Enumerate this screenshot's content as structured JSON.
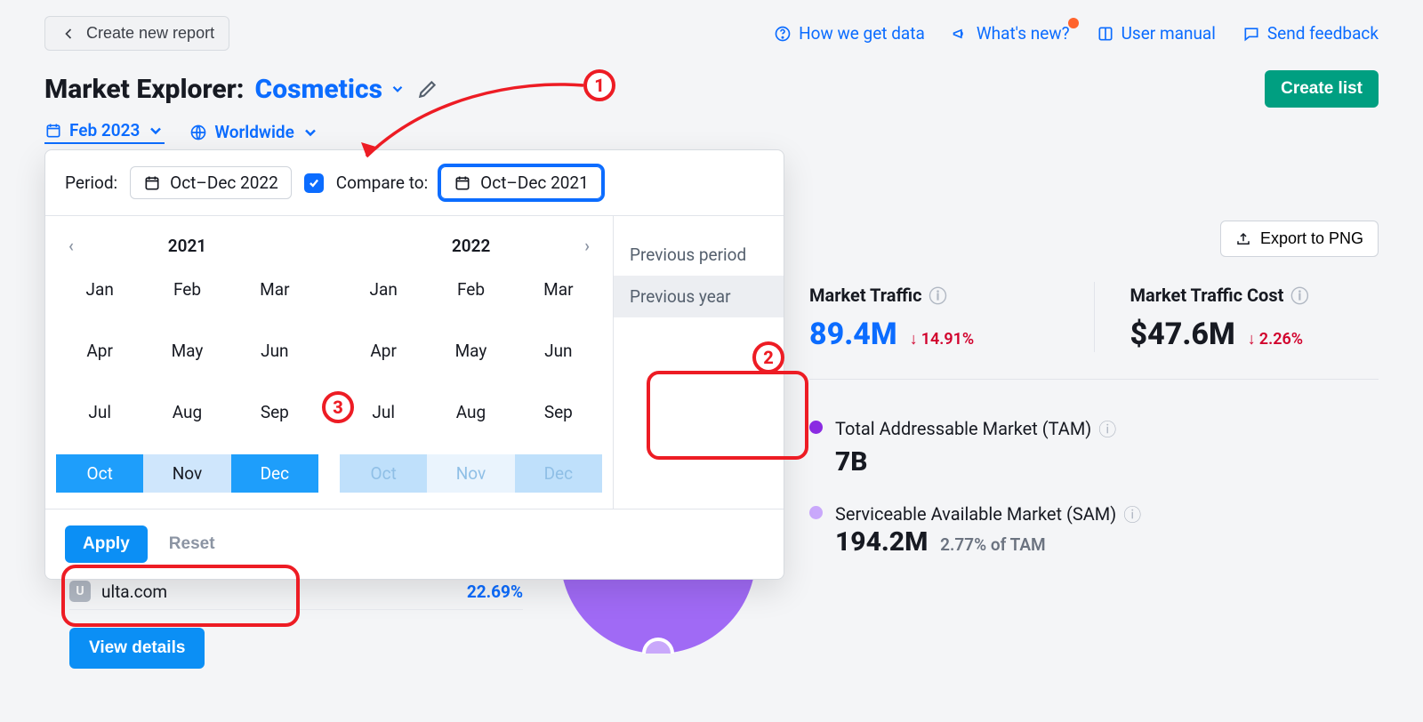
{
  "topbar": {
    "back_label": "Create new report",
    "links": {
      "how": "How we get data",
      "whats_new": "What's new?",
      "manual": "User manual",
      "feedback": "Send feedback"
    }
  },
  "title": {
    "prefix": "Market Explorer:",
    "name": "Cosmetics",
    "create_list": "Create list"
  },
  "filters": {
    "date": "Feb 2023",
    "region": "Worldwide"
  },
  "popover": {
    "period_label": "Period:",
    "period_value": "Oct–Dec 2022",
    "compare_label": "Compare to:",
    "compare_value": "Oct–Dec 2021",
    "year_left": "2021",
    "year_right": "2022",
    "months": [
      "Jan",
      "Feb",
      "Mar",
      "Apr",
      "May",
      "Jun",
      "Jul",
      "Aug",
      "Sep",
      "Oct",
      "Nov",
      "Dec"
    ],
    "side": {
      "prev_period": "Previous period",
      "prev_year": "Previous year"
    },
    "apply": "Apply",
    "reset": "Reset"
  },
  "annotations": {
    "n1": "1",
    "n2": "2",
    "n3": "3"
  },
  "export_label": "Export to PNG",
  "stats": {
    "traffic_title": "Market Traffic",
    "traffic_value": "89.4M",
    "traffic_delta": "14.91%",
    "cost_title": "Market Traffic Cost",
    "cost_value": "$47.6M",
    "cost_delta": "2.26%"
  },
  "legend": {
    "tam_label": "Total Addressable Market (TAM)",
    "tam_value": "7B",
    "tam_color": "#8a2be2",
    "sam_label": "Serviceable Available Market (SAM)",
    "sam_value": "194.2M",
    "sam_sub": "2.77% of TAM",
    "sam_color": "#c9a8fb"
  },
  "ulta": {
    "badge": "U",
    "domain": "ulta.com",
    "pct": "22.69%"
  },
  "view_details": "View details",
  "colors": {
    "accent_blue": "#0b6cff",
    "button_blue": "#0b8ff5",
    "green": "#009f81",
    "red_anno": "#ed1c24",
    "delta_red": "#d1002c",
    "orange_dot": "#ff642d",
    "purple": "#a06af5"
  }
}
